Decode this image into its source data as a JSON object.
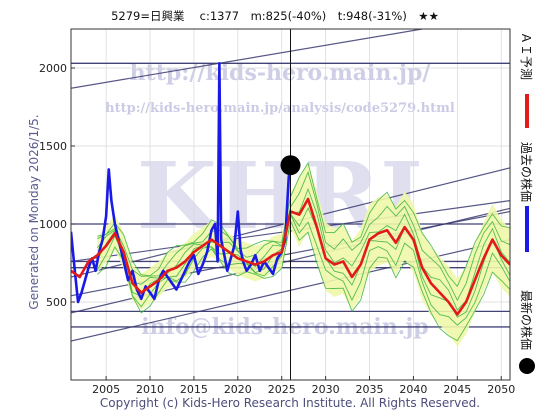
{
  "chart_data": {
    "type": "line",
    "title": "5279=日興業　 c:1377　m:825(-40%)　t:948(-31%)　★★",
    "xlim": [
      2001,
      2051
    ],
    "ylim": [
      0,
      2250
    ],
    "x_ticks": [
      2005,
      2010,
      2015,
      2020,
      2025,
      2030,
      2035,
      2040,
      2045,
      2050
    ],
    "y_ticks": [
      500,
      1000,
      1500,
      2000
    ],
    "grid": true,
    "current_marker": {
      "x": 2026.0,
      "y": 1377,
      "label": "最新の株価"
    },
    "current_vline": 2026.0,
    "series": [
      {
        "name": "過去の株価",
        "color": "#1a1ae6",
        "x": [
          2001.0,
          2001.4,
          2001.8,
          2002.2,
          2002.6,
          2003.0,
          2003.4,
          2003.8,
          2004.2,
          2004.6,
          2005.0,
          2005.3,
          2005.6,
          2006.0,
          2006.5,
          2007.0,
          2007.5,
          2008.0,
          2008.5,
          2009.0,
          2009.5,
          2010.0,
          2010.5,
          2011.0,
          2011.5,
          2012.0,
          2012.5,
          2013.0,
          2013.5,
          2014.0,
          2014.5,
          2015.0,
          2015.5,
          2016.0,
          2016.5,
          2017.0,
          2017.4,
          2017.7,
          2017.9,
          2018.1,
          2018.4,
          2018.8,
          2019.2,
          2019.6,
          2020.0,
          2020.3,
          2020.6,
          2021.0,
          2021.5,
          2022.0,
          2022.5,
          2023.0,
          2023.5,
          2024.0,
          2024.5,
          2025.0,
          2025.4,
          2025.8,
          2026.0
        ],
        "y": [
          950,
          720,
          500,
          560,
          640,
          720,
          780,
          700,
          820,
          900,
          1050,
          1350,
          1150,
          1000,
          880,
          760,
          640,
          700,
          580,
          520,
          600,
          560,
          520,
          640,
          700,
          660,
          620,
          580,
          640,
          700,
          760,
          800,
          680,
          740,
          820,
          960,
          1000,
          760,
          2030,
          900,
          820,
          700,
          780,
          860,
          1080,
          840,
          760,
          700,
          740,
          800,
          700,
          760,
          720,
          680,
          780,
          820,
          900,
          1300,
          1377
        ]
      },
      {
        "name": "ＡＩ予測",
        "color": "#e31a1a",
        "x": [
          2001.0,
          2002.0,
          2003.0,
          2004.0,
          2005.0,
          2006.0,
          2007.0,
          2008.0,
          2009.0,
          2010.0,
          2011.0,
          2012.0,
          2013.0,
          2014.0,
          2015.0,
          2016.0,
          2017.0,
          2018.0,
          2019.0,
          2020.0,
          2021.0,
          2022.0,
          2023.0,
          2024.0,
          2025.0,
          2026.0,
          2027.0,
          2028.0,
          2029.0,
          2030.0,
          2031.0,
          2032.0,
          2033.0,
          2034.0,
          2035.0,
          2036.0,
          2037.0,
          2038.0,
          2039.0,
          2040.0,
          2041.0,
          2042.0,
          2043.0,
          2044.0,
          2045.0,
          2046.0,
          2047.0,
          2048.0,
          2049.0,
          2050.0,
          2051.0
        ],
        "y": [
          700,
          660,
          760,
          800,
          860,
          940,
          820,
          620,
          560,
          600,
          640,
          700,
          720,
          760,
          820,
          860,
          900,
          860,
          820,
          780,
          760,
          740,
          760,
          800,
          820,
          1080,
          1060,
          1160,
          980,
          780,
          740,
          760,
          660,
          740,
          900,
          940,
          960,
          880,
          980,
          900,
          720,
          620,
          560,
          500,
          420,
          500,
          640,
          780,
          900,
          800,
          740
        ]
      }
    ]
  },
  "header": {
    "title": "5279=日興業　 c:1377　m:825(-40%)　t:948(-31%)　★★"
  },
  "side_label": "Generated on Monday 2026/1/5.",
  "legend": {
    "ai": "ＡＩ予測",
    "past": "過去の株価",
    "latest": "最新の株価"
  },
  "watermark": {
    "big": "KHRI",
    "url": "http://kids-hero.main.jp/",
    "analysis_url": "http://kids-hero.main.jp/analysis/code5279.html",
    "email": "info@kids-hero.main.jp"
  },
  "footer": {
    "copyright": "Copyright (c) Kids-Hero Research Institute. All Rights Reserved."
  },
  "colors": {
    "band_fill": "#eef7a8",
    "band_lines": "#3cb43c",
    "channel": "#3a3a72",
    "hline": "#2f2f6a"
  }
}
